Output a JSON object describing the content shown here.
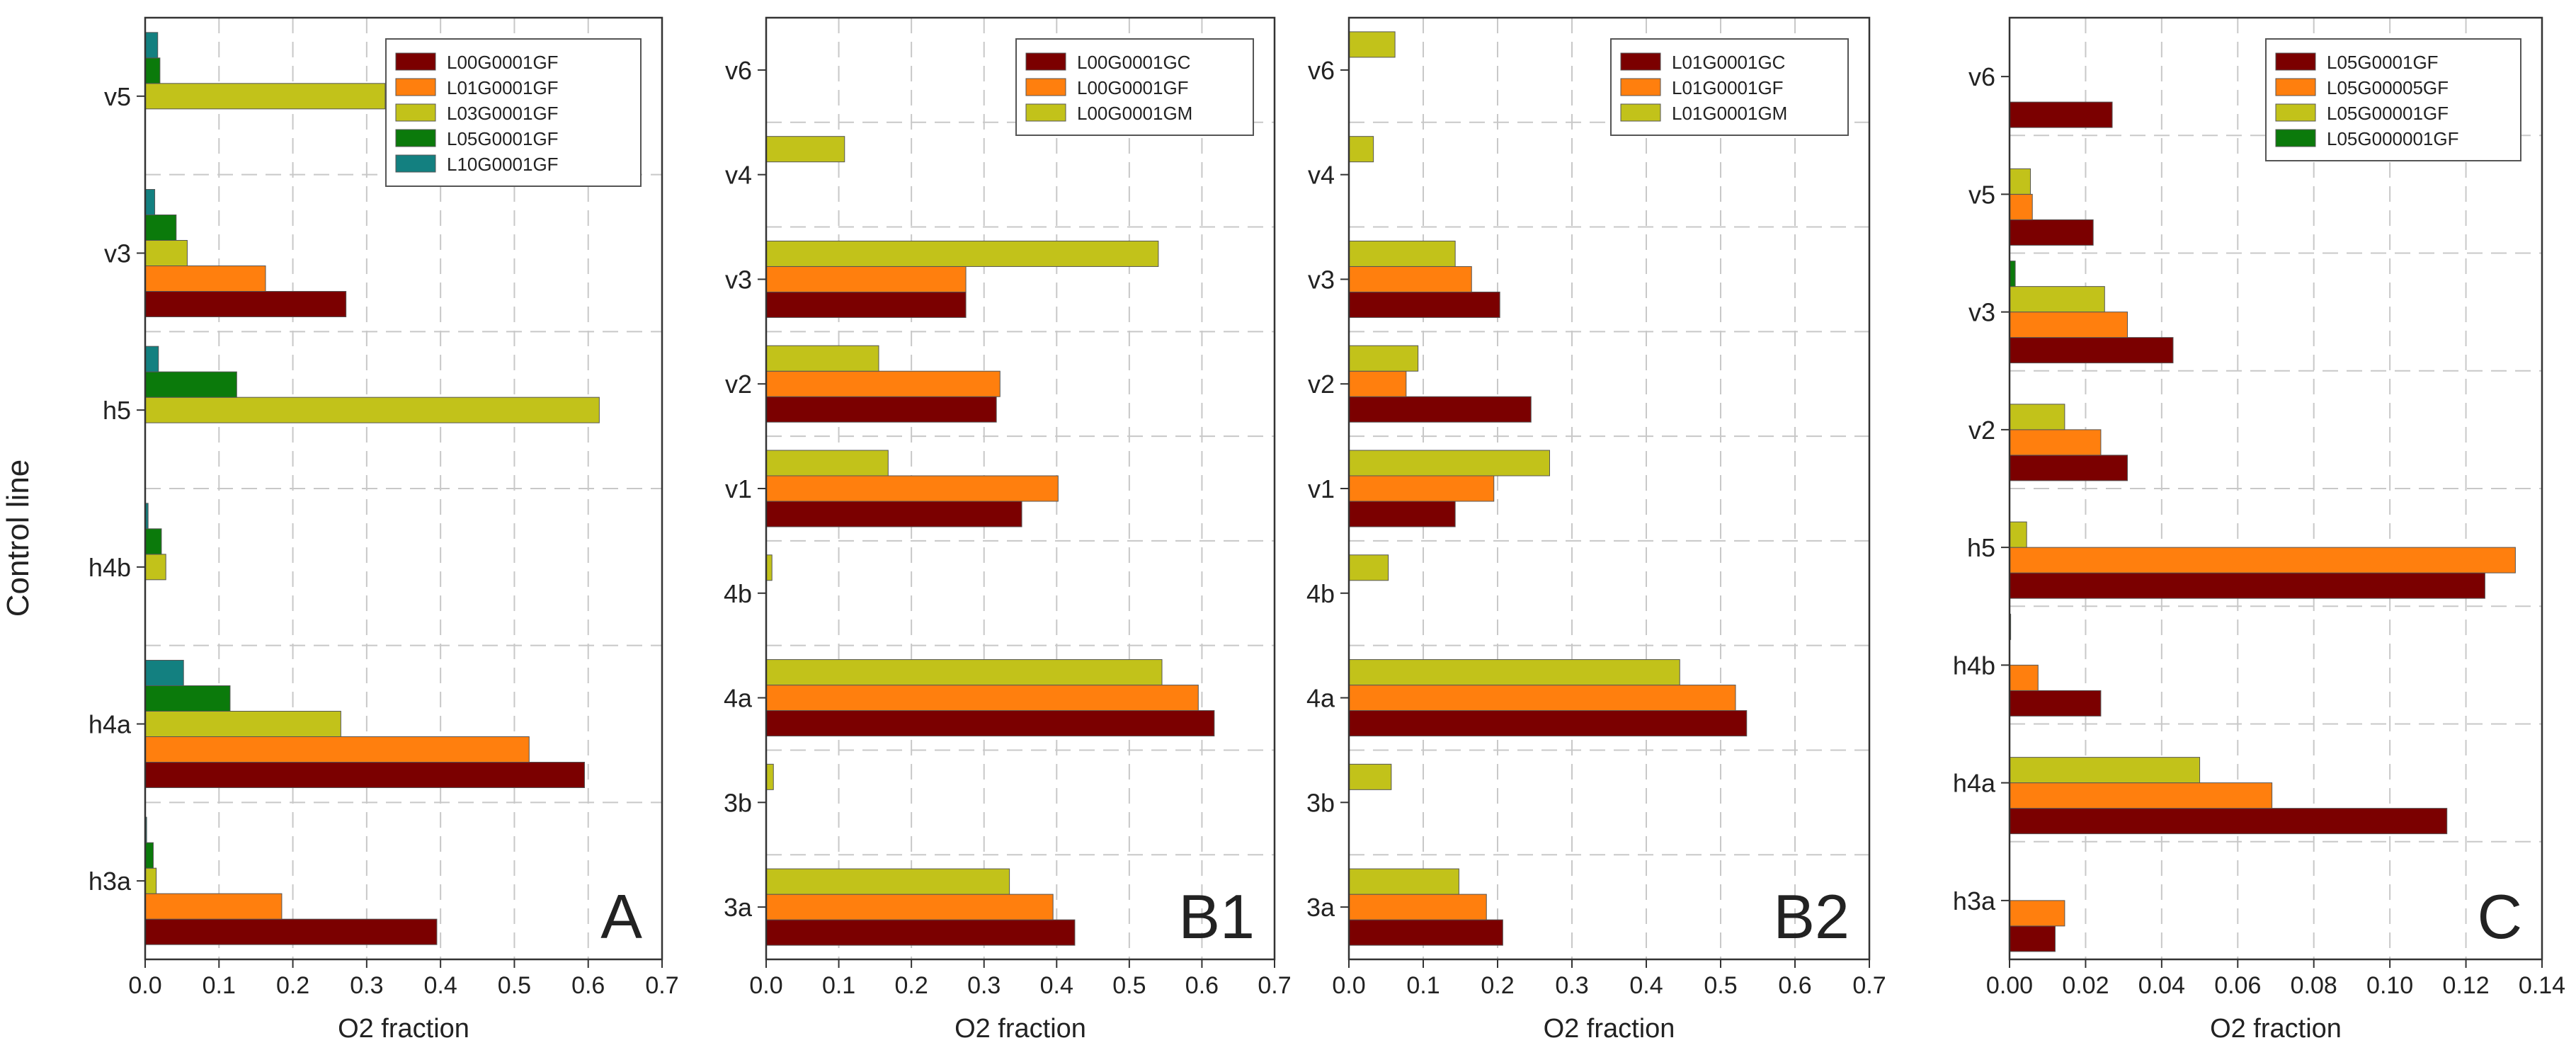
{
  "figure": {
    "ylabel": "Control line"
  },
  "colors": {
    "darkred": "#7b0000",
    "orange": "#ff7f0e",
    "olive": "#c2c21a",
    "green": "#0b7a0b",
    "teal": "#138080"
  },
  "chart_data": [
    {
      "type": "bar",
      "orientation": "horizontal",
      "panel_label": "A",
      "xlabel": "O2 fraction",
      "ylabel": "Control line",
      "xlim": [
        0,
        0.7
      ],
      "xticks": [
        "0.0",
        "0.1",
        "0.2",
        "0.3",
        "0.4",
        "0.5",
        "0.6",
        "0.7"
      ],
      "categories": [
        "h3a",
        "h4a",
        "h4b",
        "h5",
        "v3",
        "v5"
      ],
      "legend_position": "top-right",
      "series": [
        {
          "name": "L00G0001GF",
          "color": "#7b0000",
          "values": [
            0.395,
            0.595,
            0.0,
            0.0,
            0.272,
            0.0
          ]
        },
        {
          "name": "L01G0001GF",
          "color": "#ff7f0e",
          "values": [
            0.185,
            0.52,
            0.0,
            0.0,
            0.163,
            0.0
          ]
        },
        {
          "name": "L03G0001GF",
          "color": "#c2c21a",
          "values": [
            0.015,
            0.265,
            0.028,
            0.615,
            0.057,
            0.325
          ]
        },
        {
          "name": "L05G0001GF",
          "color": "#0b7a0b",
          "values": [
            0.011,
            0.115,
            0.022,
            0.124,
            0.042,
            0.02
          ]
        },
        {
          "name": "L10G0001GF",
          "color": "#138080",
          "values": [
            0.002,
            0.052,
            0.004,
            0.018,
            0.013,
            0.017
          ]
        }
      ]
    },
    {
      "type": "bar",
      "orientation": "horizontal",
      "panel_label": "B1",
      "xlabel": "O2 fraction",
      "xlim": [
        0,
        0.7
      ],
      "xticks": [
        "0.0",
        "0.1",
        "0.2",
        "0.3",
        "0.4",
        "0.5",
        "0.6",
        "0.7"
      ],
      "categories": [
        "3a",
        "3b",
        "4a",
        "4b",
        "v1",
        "v2",
        "v3",
        "v4",
        "v6"
      ],
      "legend_position": "top-right",
      "series": [
        {
          "name": "L00G0001GC",
          "color": "#7b0000",
          "values": [
            0.425,
            0.0,
            0.617,
            0.0,
            0.352,
            0.317,
            0.275,
            0.0,
            0.0
          ]
        },
        {
          "name": "L00G0001GF",
          "color": "#ff7f0e",
          "values": [
            0.395,
            0.0,
            0.595,
            0.0,
            0.402,
            0.322,
            0.275,
            0.0,
            0.0
          ]
        },
        {
          "name": "L00G0001GM",
          "color": "#c2c21a",
          "values": [
            0.335,
            0.01,
            0.545,
            0.008,
            0.168,
            0.155,
            0.54,
            0.108,
            0.0
          ]
        }
      ]
    },
    {
      "type": "bar",
      "orientation": "horizontal",
      "panel_label": "B2",
      "xlabel": "O2 fraction",
      "xlim": [
        0,
        0.7
      ],
      "xticks": [
        "0.0",
        "0.1",
        "0.2",
        "0.3",
        "0.4",
        "0.5",
        "0.6",
        "0.7"
      ],
      "categories": [
        "3a",
        "3b",
        "4a",
        "4b",
        "v1",
        "v2",
        "v3",
        "v4",
        "v6"
      ],
      "legend_position": "top-right",
      "series": [
        {
          "name": "L01G0001GC",
          "color": "#7b0000",
          "values": [
            0.207,
            0.0,
            0.535,
            0.0,
            0.143,
            0.245,
            0.203,
            0.0,
            0.0
          ]
        },
        {
          "name": "L01G0001GF",
          "color": "#ff7f0e",
          "values": [
            0.185,
            0.0,
            0.52,
            0.0,
            0.195,
            0.077,
            0.165,
            0.0,
            0.0
          ]
        },
        {
          "name": "L01G0001GM",
          "color": "#c2c21a",
          "values": [
            0.148,
            0.057,
            0.445,
            0.053,
            0.27,
            0.093,
            0.143,
            0.033,
            0.062
          ]
        }
      ]
    },
    {
      "type": "bar",
      "orientation": "horizontal",
      "panel_label": "C",
      "xlabel": "O2 fraction",
      "xlim": [
        0,
        0.14
      ],
      "xticks": [
        "0.00",
        "0.02",
        "0.04",
        "0.06",
        "0.08",
        "0.10",
        "0.12",
        "0.14"
      ],
      "categories": [
        "h3a",
        "h4a",
        "h4b",
        "h5",
        "v2",
        "v3",
        "v5",
        "v6"
      ],
      "legend_position": "top-right",
      "series": [
        {
          "name": "L05G0001GF",
          "color": "#7b0000",
          "values": [
            0.012,
            0.115,
            0.024,
            0.125,
            0.031,
            0.043,
            0.022,
            0.027
          ]
        },
        {
          "name": "L05G00005GF",
          "color": "#ff7f0e",
          "values": [
            0.0145,
            0.069,
            0.0075,
            0.133,
            0.024,
            0.031,
            0.006,
            0.0
          ]
        },
        {
          "name": "L05G00001GF",
          "color": "#c2c21a",
          "values": [
            0.0,
            0.05,
            0.0,
            0.0045,
            0.0145,
            0.025,
            0.0055,
            0.0
          ]
        },
        {
          "name": "L05G000001GF",
          "color": "#0b7a0b",
          "values": [
            0.0,
            0.0,
            0.0003,
            0.0,
            0.0,
            0.0015,
            0.0,
            0.0
          ]
        }
      ]
    }
  ]
}
